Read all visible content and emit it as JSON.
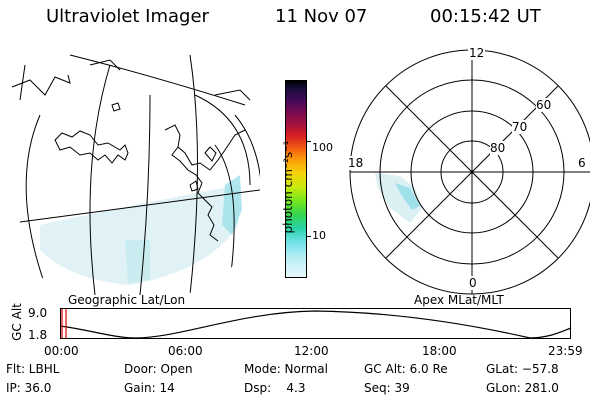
{
  "header": {
    "title": "Ultraviolet Imager",
    "date": "11 Nov 07",
    "time": "00:15:42 UT"
  },
  "map": {
    "caption": "Geographic Lat/Lon"
  },
  "colorbar": {
    "unit_label": "photon cm⁻²s⁻¹",
    "tick_100": "100",
    "tick_10": "10",
    "colors": [
      "#000000",
      "#1b0d3a",
      "#3b0a55",
      "#6e0a52",
      "#a3123e",
      "#d71f22",
      "#f25b14",
      "#fb9a0b",
      "#f6d308",
      "#c8ea0b",
      "#77e81e",
      "#36d44d",
      "#27d3a6",
      "#6fe0e8",
      "#b7eef5",
      "#e6f7fa"
    ]
  },
  "polar": {
    "caption": "Apex MLat/MLT",
    "hour_12": "12",
    "hour_18": "18",
    "hour_6": "6",
    "hour_0": "0",
    "lat_60": "60",
    "lat_70": "70",
    "lat_80": "80"
  },
  "timeline": {
    "axis_label": "GC Alt",
    "y_top": "9.0",
    "y_bottom": "1.8",
    "ticks": [
      "00:00",
      "06:00",
      "12:00",
      "18:00",
      "23:59"
    ],
    "current_marker_color": "#dd0000"
  },
  "info": {
    "flt": "Flt: LBHL",
    "ip": "IP: 36.0",
    "door": "Door: Open",
    "gain": "Gain: 14",
    "mode": "Mode: Normal",
    "dsp": "Dsp:    4.3",
    "gc_alt": "GC Alt: 6.0 Re",
    "seq": "Seq: 39",
    "glat": "GLat: −57.8",
    "glon": "GLon: 281.0"
  }
}
